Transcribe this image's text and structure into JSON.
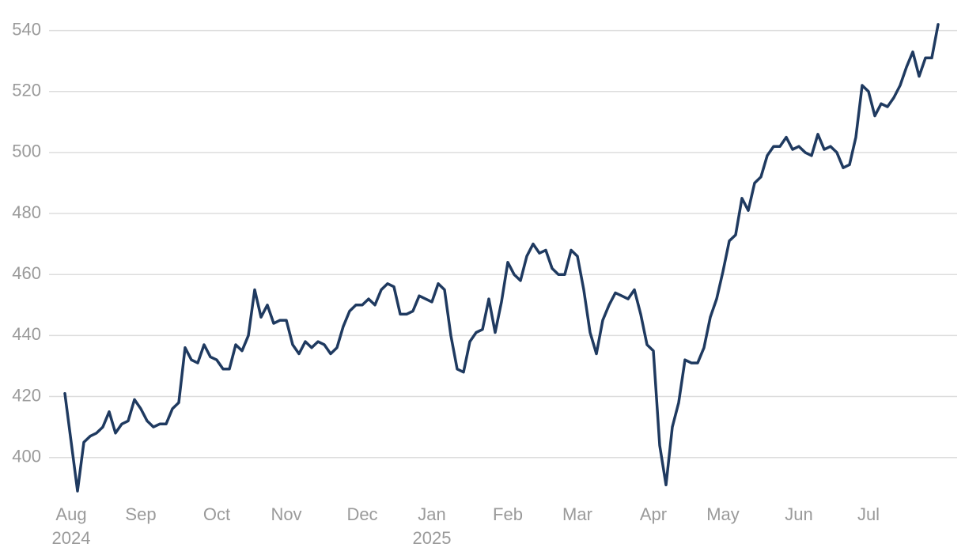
{
  "chart_data": {
    "type": "line",
    "categories": [
      null,
      "Aug 2024",
      null,
      null,
      null,
      null,
      null,
      null,
      null,
      null,
      null,
      null,
      "Sep",
      null,
      null,
      null,
      null,
      null,
      null,
      null,
      null,
      null,
      null,
      null,
      "Oct",
      null,
      null,
      null,
      null,
      null,
      null,
      null,
      null,
      null,
      null,
      "Nov",
      null,
      null,
      null,
      null,
      null,
      null,
      null,
      null,
      null,
      null,
      null,
      "Dec",
      null,
      null,
      null,
      null,
      null,
      null,
      null,
      null,
      null,
      null,
      "Jan 2025",
      null,
      null,
      null,
      null,
      null,
      null,
      null,
      null,
      null,
      null,
      null,
      "Feb",
      null,
      null,
      null,
      null,
      null,
      null,
      null,
      null,
      null,
      null,
      "Mar",
      null,
      null,
      null,
      null,
      null,
      null,
      null,
      null,
      null,
      null,
      null,
      "Apr",
      null,
      null,
      null,
      null,
      null,
      null,
      null,
      null,
      null,
      null,
      "May",
      null,
      null,
      null,
      null,
      null,
      null,
      null,
      null,
      null,
      null,
      null,
      "Jun",
      null,
      null,
      null,
      null,
      null,
      null,
      null,
      null,
      null,
      null,
      "Jul",
      null,
      null,
      null,
      null,
      null,
      null,
      null,
      null,
      null,
      null,
      null
    ],
    "series": [
      {
        "color": "#1f3a60",
        "values": [
          421,
          405,
          389,
          405,
          407,
          408,
          410,
          415,
          408,
          411,
          412,
          419,
          416,
          412,
          410,
          411,
          411,
          416,
          418,
          436,
          432,
          431,
          437,
          433,
          432,
          429,
          429,
          437,
          435,
          440,
          455,
          446,
          450,
          444,
          445,
          445,
          437,
          434,
          438,
          436,
          438,
          437,
          434,
          436,
          443,
          448,
          450,
          450,
          452,
          450,
          455,
          457,
          456,
          447,
          447,
          448,
          453,
          452,
          451,
          457,
          455,
          440,
          429,
          428,
          438,
          441,
          442,
          452,
          441,
          451,
          464,
          460,
          458,
          466,
          470,
          467,
          468,
          462,
          460,
          460,
          468,
          466,
          455,
          441,
          434,
          445,
          450,
          454,
          453,
          452,
          455,
          447,
          437,
          435,
          404,
          391,
          410,
          418,
          432,
          431,
          431,
          436,
          446,
          452,
          461,
          471,
          473,
          485,
          481,
          490,
          492,
          499,
          502,
          502,
          505,
          501,
          502,
          500,
          499,
          506,
          501,
          502,
          500,
          495,
          496,
          505,
          522,
          520,
          512,
          516,
          515,
          518,
          522,
          528,
          533,
          525,
          531,
          531,
          542
        ]
      }
    ],
    "ylim": [
      388,
      550
    ],
    "yticks": [
      400,
      420,
      440,
      460,
      480,
      500,
      520,
      540
    ],
    "grid": true
  }
}
